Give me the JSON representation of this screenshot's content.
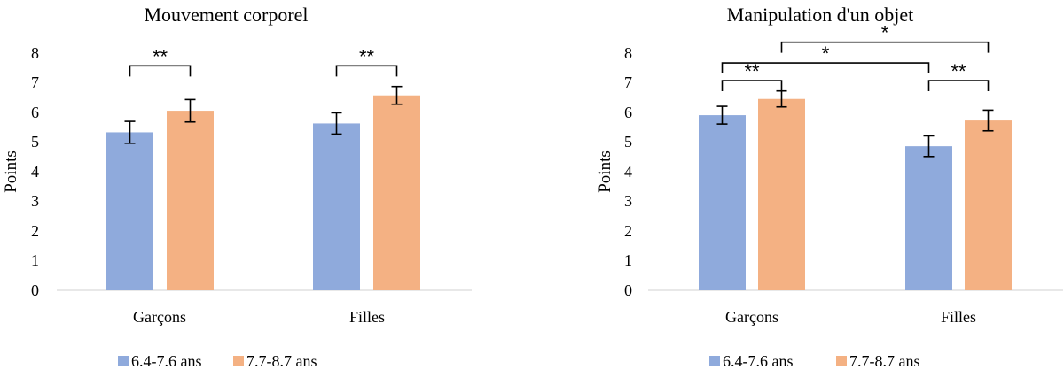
{
  "chart_data": [
    {
      "type": "bar",
      "title": "Mouvement corporel",
      "ylabel": "Points",
      "xlabel": "",
      "ylim": [
        0,
        8
      ],
      "yticks": [
        "0",
        "1",
        "2",
        "3",
        "4",
        "5",
        "6",
        "7",
        "8"
      ],
      "categories": [
        "Garçons",
        "Filles"
      ],
      "series": [
        {
          "name": "6.4-7.6 ans",
          "color": "#8faadc",
          "values": [
            5.35,
            5.65
          ],
          "errors": [
            0.37,
            0.36
          ]
        },
        {
          "name": "7.7-8.7 ans",
          "color": "#f4b183",
          "values": [
            6.08,
            6.6
          ],
          "errors": [
            0.38,
            0.3
          ]
        }
      ],
      "significance": [
        {
          "label": "**",
          "from": [
            0,
            0
          ],
          "to": [
            0,
            1
          ],
          "level": 7.6
        },
        {
          "label": "**",
          "from": [
            1,
            0
          ],
          "to": [
            1,
            1
          ],
          "level": 7.6
        }
      ],
      "legend_position": "bottom-left"
    },
    {
      "type": "bar",
      "title": "Manipulation d'un objet",
      "ylabel": "Points",
      "xlabel": "",
      "ylim": [
        0,
        8
      ],
      "yticks": [
        "0",
        "1",
        "2",
        "3",
        "4",
        "5",
        "6",
        "7",
        "8"
      ],
      "categories": [
        "Garçons",
        "Filles"
      ],
      "series": [
        {
          "name": "6.4-7.6 ans",
          "color": "#8faadc",
          "values": [
            5.93,
            4.88
          ],
          "errors": [
            0.3,
            0.35
          ]
        },
        {
          "name": "7.7-8.7 ans",
          "color": "#f4b183",
          "values": [
            6.48,
            5.75
          ],
          "errors": [
            0.27,
            0.35
          ]
        }
      ],
      "significance": [
        {
          "label": "**",
          "from": [
            0,
            0
          ],
          "to": [
            0,
            1
          ],
          "level": 7.1
        },
        {
          "label": "**",
          "from": [
            1,
            0
          ],
          "to": [
            1,
            1
          ],
          "level": 7.1
        },
        {
          "label": "*",
          "from": [
            0,
            0
          ],
          "to": [
            1,
            0
          ],
          "level": 7.7
        },
        {
          "label": "*",
          "from": [
            0,
            1
          ],
          "to": [
            1,
            1
          ],
          "level": 8.4
        }
      ],
      "legend_position": "bottom-left"
    }
  ]
}
